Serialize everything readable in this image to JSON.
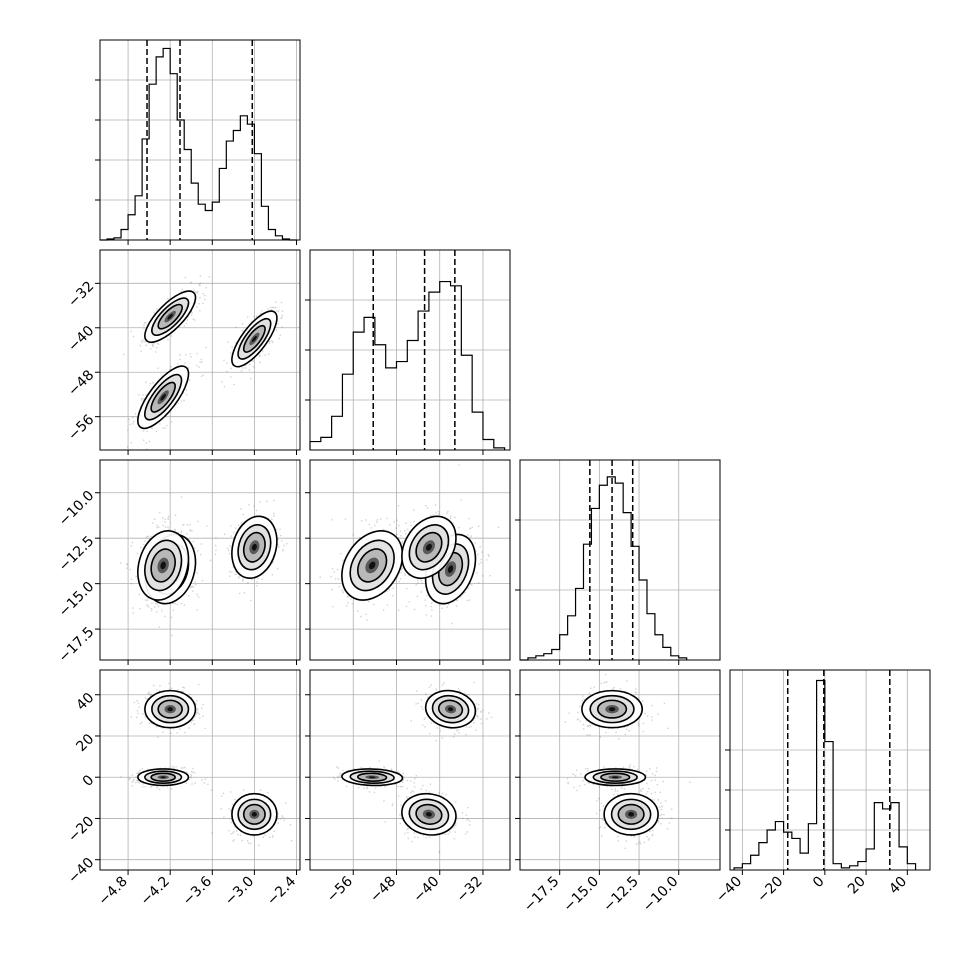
{
  "chart_data": {
    "type": "corner",
    "dimensions": 4,
    "histograms": [
      {
        "xlim": [
          -5.2,
          -2.35
        ],
        "xticks": [
          -4.8,
          -4.2,
          -3.6,
          -3.0,
          -2.4
        ],
        "xtick_labels": [
          "−4.8",
          "−4.2",
          "−3.6",
          "−3.0",
          "−2.4"
        ],
        "ytick_fracs": [
          0.2,
          0.4,
          0.6,
          0.8
        ],
        "edges": [
          -5.2,
          -5.1,
          -5.0,
          -4.9,
          -4.8,
          -4.7,
          -4.6,
          -4.5,
          -4.4,
          -4.3,
          -4.2,
          -4.1,
          -4.0,
          -3.9,
          -3.8,
          -3.7,
          -3.6,
          -3.5,
          -3.4,
          -3.3,
          -3.2,
          -3.1,
          -3.0,
          -2.9,
          -2.8,
          -2.7,
          -2.6,
          -2.5,
          -2.4
        ],
        "counts": [
          0.0,
          0.005,
          0.01,
          0.05,
          0.12,
          0.21,
          0.48,
          0.74,
          0.87,
          0.91,
          0.79,
          0.57,
          0.43,
          0.27,
          0.17,
          0.14,
          0.18,
          0.34,
          0.47,
          0.52,
          0.59,
          0.55,
          0.41,
          0.16,
          0.05,
          0.02,
          0.005,
          0.0
        ],
        "quantiles": [
          -4.53,
          -4.06,
          -3.03
        ]
      },
      {
        "xlim": [
          -64,
          -27
        ],
        "xticks": [
          -56,
          -48,
          -40,
          -32
        ],
        "xtick_labels": [
          "−56",
          "−48",
          "−40",
          "−32"
        ],
        "ytick_fracs": [
          0.25,
          0.5,
          0.75
        ],
        "edges": [
          -64,
          -62,
          -60,
          -58,
          -56,
          -54,
          -52,
          -50,
          -48,
          -46,
          -44,
          -42,
          -40,
          -38,
          -36,
          -34,
          -32,
          -30,
          -28
        ],
        "counts": [
          0.04,
          0.06,
          0.16,
          0.36,
          0.56,
          0.63,
          0.5,
          0.39,
          0.42,
          0.52,
          0.66,
          0.75,
          0.8,
          0.78,
          0.45,
          0.18,
          0.05,
          0.01
        ],
        "quantiles": [
          -52.3,
          -42.8,
          -37.2
        ]
      },
      {
        "xlim": [
          -20.0,
          -7.4
        ],
        "xticks": [
          -17.5,
          -15.0,
          -12.5,
          -10.0
        ],
        "xtick_labels": [
          "−17.5",
          "−15.0",
          "−12.5",
          "−10.0"
        ],
        "ytick_fracs": [
          0.35,
          0.7
        ],
        "edges": [
          -20.0,
          -19.5,
          -19.0,
          -18.5,
          -18.0,
          -17.5,
          -17.0,
          -16.5,
          -16.0,
          -15.5,
          -15.0,
          -14.5,
          -14.0,
          -13.5,
          -13.0,
          -12.5,
          -12.0,
          -11.5,
          -11.0,
          -10.5,
          -10.0,
          -9.5
        ],
        "counts": [
          0.0,
          0.01,
          0.02,
          0.03,
          0.05,
          0.12,
          0.21,
          0.34,
          0.55,
          0.72,
          0.83,
          0.87,
          0.84,
          0.7,
          0.54,
          0.38,
          0.22,
          0.12,
          0.06,
          0.02,
          0.01
        ],
        "quantiles": [
          -15.6,
          -14.2,
          -12.9
        ]
      },
      {
        "xlim": [
          -46,
          51
        ],
        "xticks": [
          -40,
          -20,
          0,
          20,
          40
        ],
        "xtick_labels": [
          "−40",
          "−20",
          "0",
          "20",
          "40"
        ],
        "ytick_fracs": [
          0.2,
          0.4,
          0.6
        ],
        "edges": [
          -44,
          -40,
          -36,
          -32,
          -28,
          -24,
          -20,
          -16,
          -12,
          -8,
          -4,
          0,
          4,
          8,
          12,
          16,
          20,
          24,
          28,
          32,
          36,
          40,
          44
        ],
        "counts": [
          0.01,
          0.03,
          0.07,
          0.13,
          0.19,
          0.23,
          0.18,
          0.15,
          0.08,
          0.22,
          0.9,
          0.61,
          0.03,
          0.01,
          0.02,
          0.04,
          0.1,
          0.32,
          0.29,
          0.32,
          0.11,
          0.03
        ],
        "quantiles": [
          -18.0,
          -0.5,
          31.5
        ]
      }
    ],
    "ytick_sets": [
      null,
      {
        "ylim": [
          -62,
          -26
        ],
        "ticks": [
          -56,
          -48,
          -40,
          -32
        ],
        "labels": [
          "−56",
          "−48",
          "−40",
          "−32"
        ]
      },
      {
        "ylim": [
          -19.2,
          -8.2
        ],
        "ticks": [
          -17.5,
          -15.0,
          -12.5,
          -10.0
        ],
        "labels": [
          "−17.5",
          "−15.0",
          "−12.5",
          "−10.0"
        ]
      },
      {
        "ylim": [
          -45,
          52
        ],
        "ticks": [
          -40,
          -20,
          0,
          20,
          40
        ],
        "labels": [
          "−40",
          "−20",
          "0",
          "20",
          "40"
        ]
      }
    ],
    "clusters": [
      {
        "means": [
          -4.2,
          -38.0,
          -14.2,
          33.0
        ],
        "sd": [
          0.18,
          2.3,
          0.95,
          4.5
        ],
        "weight": 0.33
      },
      {
        "means": [
          -4.3,
          -52.5,
          -14.0,
          0.0
        ],
        "sd": [
          0.18,
          2.8,
          0.95,
          2.0
        ],
        "weight": 0.34
      },
      {
        "means": [
          -3.0,
          -42.0,
          -13.0,
          -18.0
        ],
        "sd": [
          0.16,
          2.5,
          0.85,
          5.0
        ],
        "weight": 0.33
      }
    ],
    "pair_corr": {
      "0-1": 0.75,
      "0-2": 0.2,
      "0-3": 0.0,
      "1-2": 0.3,
      "1-3": -0.1,
      "2-3": 0.0
    },
    "grid": true,
    "colors": {
      "line": "#000000",
      "grid": "#b0b0b0",
      "scatter": "#7f7f7f"
    }
  }
}
